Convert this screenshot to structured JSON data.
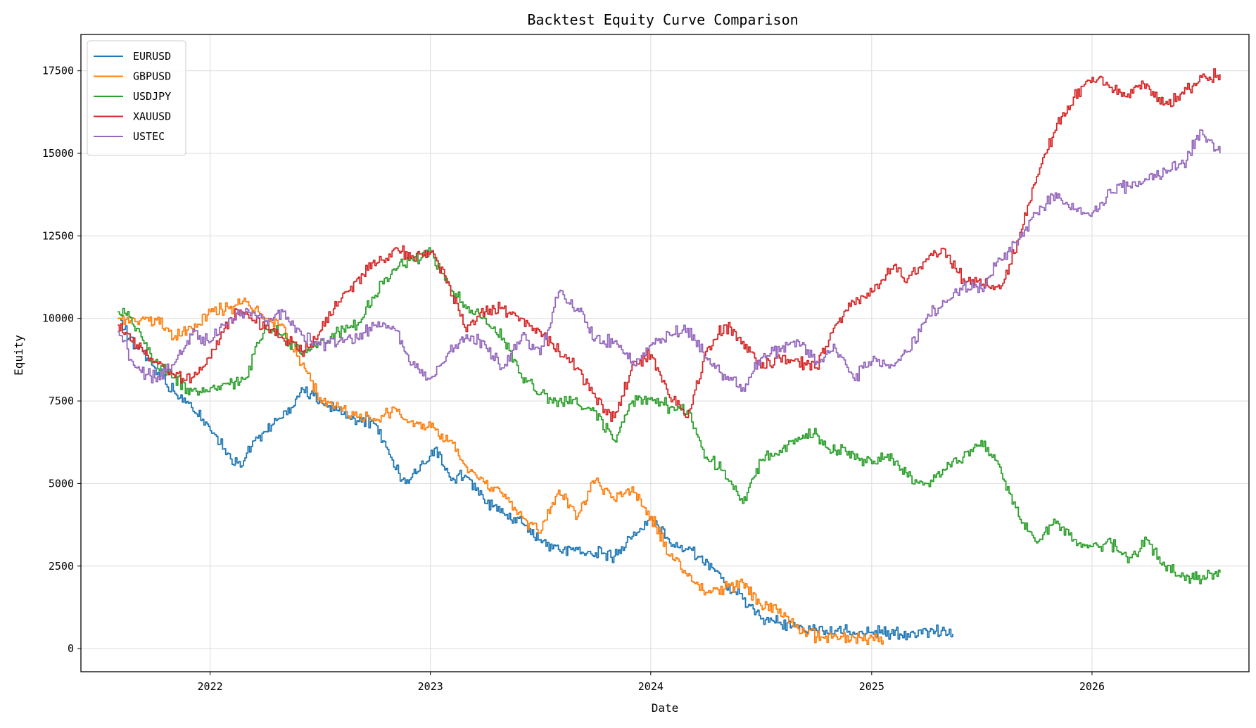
{
  "chart_data": {
    "type": "line",
    "title": "Backtest Equity Curve Comparison",
    "xlabel": "Date",
    "ylabel": "Equity",
    "x_ticks": [
      "2022",
      "2023",
      "2024",
      "2025",
      "2026"
    ],
    "y_ticks": [
      0,
      2500,
      5000,
      7500,
      10000,
      12500,
      15000,
      17500
    ],
    "xlim": [
      "2021-06-01",
      "2026-09-18"
    ],
    "ylim": [
      -700,
      18600
    ],
    "grid": true,
    "legend_position": "top-left",
    "series": [
      {
        "name": "EURUSD",
        "color": "#1f77b4",
        "points": [
          [
            "2021-08-01",
            10000
          ],
          [
            "2021-09-01",
            9100
          ],
          [
            "2021-10-01",
            8500
          ],
          [
            "2021-11-01",
            7800
          ],
          [
            "2021-12-01",
            7300
          ],
          [
            "2022-01-01",
            6600
          ],
          [
            "2022-02-01",
            5900
          ],
          [
            "2022-02-20",
            5500
          ],
          [
            "2022-03-15",
            6300
          ],
          [
            "2022-04-15",
            6800
          ],
          [
            "2022-05-15",
            7300
          ],
          [
            "2022-06-01",
            7900
          ],
          [
            "2022-07-01",
            7500
          ],
          [
            "2022-08-01",
            7200
          ],
          [
            "2022-09-01",
            6900
          ],
          [
            "2022-10-01",
            6800
          ],
          [
            "2022-11-01",
            5500
          ],
          [
            "2022-11-20",
            5000
          ],
          [
            "2022-12-20",
            5600
          ],
          [
            "2023-01-10",
            6100
          ],
          [
            "2023-02-01",
            5200
          ],
          [
            "2023-03-01",
            5200
          ],
          [
            "2023-04-01",
            4400
          ],
          [
            "2023-05-01",
            4100
          ],
          [
            "2023-06-01",
            3800
          ],
          [
            "2023-07-01",
            3300
          ],
          [
            "2023-08-01",
            3000
          ],
          [
            "2023-09-01",
            3000
          ],
          [
            "2023-10-01",
            2900
          ],
          [
            "2023-11-01",
            2800
          ],
          [
            "2023-12-01",
            3400
          ],
          [
            "2024-01-01",
            4000
          ],
          [
            "2024-02-01",
            3200
          ],
          [
            "2024-03-01",
            3000
          ],
          [
            "2024-04-01",
            2700
          ],
          [
            "2024-05-01",
            2000
          ],
          [
            "2024-06-01",
            1500
          ],
          [
            "2024-07-01",
            900
          ],
          [
            "2024-08-01",
            800
          ],
          [
            "2024-09-01",
            600
          ],
          [
            "2024-10-01",
            550
          ],
          [
            "2024-11-01",
            550
          ],
          [
            "2024-12-01",
            500
          ],
          [
            "2025-01-01",
            500
          ],
          [
            "2025-02-01",
            450
          ],
          [
            "2025-03-01",
            450
          ],
          [
            "2025-04-01",
            550
          ],
          [
            "2025-05-01",
            550
          ],
          [
            "2025-05-15",
            450
          ]
        ]
      },
      {
        "name": "GBPUSD",
        "color": "#ff7f0e",
        "points": [
          [
            "2021-08-01",
            10000
          ],
          [
            "2021-09-01",
            9900
          ],
          [
            "2021-10-01",
            10000
          ],
          [
            "2021-11-01",
            9400
          ],
          [
            "2021-12-01",
            9700
          ],
          [
            "2022-01-01",
            10200
          ],
          [
            "2022-02-01",
            10300
          ],
          [
            "2022-03-01",
            10500
          ],
          [
            "2022-04-01",
            10000
          ],
          [
            "2022-05-01",
            9800
          ],
          [
            "2022-06-01",
            8600
          ],
          [
            "2022-07-01",
            7600
          ],
          [
            "2022-08-01",
            7300
          ],
          [
            "2022-09-01",
            7000
          ],
          [
            "2022-10-01",
            6900
          ],
          [
            "2022-11-01",
            7300
          ],
          [
            "2022-12-01",
            6900
          ],
          [
            "2023-01-01",
            6700
          ],
          [
            "2023-02-01",
            6300
          ],
          [
            "2023-03-01",
            5500
          ],
          [
            "2023-04-01",
            5000
          ],
          [
            "2023-05-01",
            4600
          ],
          [
            "2023-06-01",
            4000
          ],
          [
            "2023-07-01",
            3500
          ],
          [
            "2023-08-01",
            4800
          ],
          [
            "2023-09-01",
            4000
          ],
          [
            "2023-10-01",
            5100
          ],
          [
            "2023-11-01",
            4500
          ],
          [
            "2023-12-01",
            4900
          ],
          [
            "2024-01-01",
            4000
          ],
          [
            "2024-02-01",
            2800
          ],
          [
            "2024-03-01",
            2200
          ],
          [
            "2024-04-01",
            1700
          ],
          [
            "2024-05-01",
            1800
          ],
          [
            "2024-06-01",
            2000
          ],
          [
            "2024-07-01",
            1300
          ],
          [
            "2024-08-01",
            1200
          ],
          [
            "2024-09-01",
            600
          ],
          [
            "2024-10-01",
            350
          ],
          [
            "2024-12-01",
            350
          ],
          [
            "2025-01-01",
            350
          ],
          [
            "2025-01-20",
            250
          ]
        ]
      },
      {
        "name": "USDJPY",
        "color": "#2ca02c",
        "points": [
          [
            "2021-08-01",
            10200
          ],
          [
            "2021-08-15",
            10100
          ],
          [
            "2021-09-01",
            9700
          ],
          [
            "2021-10-01",
            8700
          ],
          [
            "2021-11-01",
            8200
          ],
          [
            "2021-12-01",
            7800
          ],
          [
            "2022-01-01",
            7900
          ],
          [
            "2022-02-01",
            8000
          ],
          [
            "2022-03-01",
            8200
          ],
          [
            "2022-04-01",
            9800
          ],
          [
            "2022-05-01",
            9500
          ],
          [
            "2022-06-01",
            8900
          ],
          [
            "2022-07-01",
            9200
          ],
          [
            "2022-08-01",
            9600
          ],
          [
            "2022-09-01",
            9800
          ],
          [
            "2022-10-01",
            10700
          ],
          [
            "2022-11-01",
            11500
          ],
          [
            "2022-12-01",
            11800
          ],
          [
            "2023-01-01",
            12000
          ],
          [
            "2023-02-01",
            11000
          ],
          [
            "2023-03-01",
            10300
          ],
          [
            "2023-04-01",
            10000
          ],
          [
            "2023-05-01",
            9400
          ],
          [
            "2023-06-01",
            8200
          ],
          [
            "2023-07-01",
            7700
          ],
          [
            "2023-08-01",
            7500
          ],
          [
            "2023-09-01",
            7400
          ],
          [
            "2023-10-01",
            7200
          ],
          [
            "2023-11-01",
            6300
          ],
          [
            "2023-12-01",
            7500
          ],
          [
            "2024-01-01",
            7600
          ],
          [
            "2024-02-01",
            7300
          ],
          [
            "2024-03-01",
            7200
          ],
          [
            "2024-04-01",
            5800
          ],
          [
            "2024-05-01",
            5400
          ],
          [
            "2024-06-01",
            4400
          ],
          [
            "2024-07-01",
            5700
          ],
          [
            "2024-08-01",
            6000
          ],
          [
            "2024-09-01",
            6400
          ],
          [
            "2024-10-01",
            6500
          ],
          [
            "2024-11-01",
            6000
          ],
          [
            "2024-12-01",
            5900
          ],
          [
            "2025-01-01",
            5600
          ],
          [
            "2025-02-01",
            5900
          ],
          [
            "2025-03-01",
            5200
          ],
          [
            "2025-04-01",
            5000
          ],
          [
            "2025-05-01",
            5400
          ],
          [
            "2025-06-01",
            5800
          ],
          [
            "2025-07-01",
            6300
          ],
          [
            "2025-08-01",
            5500
          ],
          [
            "2025-09-01",
            4000
          ],
          [
            "2025-10-01",
            3200
          ],
          [
            "2025-11-01",
            3800
          ],
          [
            "2025-12-01",
            3300
          ],
          [
            "2026-01-01",
            3100
          ],
          [
            "2026-02-01",
            3200
          ],
          [
            "2026-03-01",
            2600
          ],
          [
            "2026-04-01",
            3300
          ],
          [
            "2026-05-01",
            2500
          ],
          [
            "2026-06-01",
            2200
          ],
          [
            "2026-07-01",
            2100
          ],
          [
            "2026-08-01",
            2300
          ]
        ]
      },
      {
        "name": "XAUUSD",
        "color": "#d62728",
        "points": [
          [
            "2021-08-01",
            9800
          ],
          [
            "2021-09-01",
            9200
          ],
          [
            "2021-10-01",
            8700
          ],
          [
            "2021-11-01",
            8300
          ],
          [
            "2021-12-01",
            8200
          ],
          [
            "2022-01-01",
            8800
          ],
          [
            "2022-02-01",
            10000
          ],
          [
            "2022-03-01",
            10200
          ],
          [
            "2022-04-01",
            9700
          ],
          [
            "2022-05-01",
            9400
          ],
          [
            "2022-06-01",
            9000
          ],
          [
            "2022-07-01",
            9600
          ],
          [
            "2022-08-01",
            10500
          ],
          [
            "2022-09-01",
            11200
          ],
          [
            "2022-10-01",
            11600
          ],
          [
            "2022-11-01",
            12100
          ],
          [
            "2022-12-01",
            11900
          ],
          [
            "2023-01-01",
            12000
          ],
          [
            "2023-02-01",
            11000
          ],
          [
            "2023-03-01",
            9600
          ],
          [
            "2023-04-01",
            10200
          ],
          [
            "2023-05-01",
            10300
          ],
          [
            "2023-06-01",
            10000
          ],
          [
            "2023-07-01",
            9600
          ],
          [
            "2023-08-01",
            9000
          ],
          [
            "2023-09-01",
            8500
          ],
          [
            "2023-10-01",
            7600
          ],
          [
            "2023-11-01",
            7000
          ],
          [
            "2023-12-01",
            8600
          ],
          [
            "2024-01-01",
            8900
          ],
          [
            "2024-02-01",
            7600
          ],
          [
            "2024-03-01",
            7000
          ],
          [
            "2024-04-01",
            9000
          ],
          [
            "2024-05-01",
            9800
          ],
          [
            "2024-06-01",
            9300
          ],
          [
            "2024-07-01",
            8500
          ],
          [
            "2024-08-01",
            8800
          ],
          [
            "2024-09-01",
            8700
          ],
          [
            "2024-10-01",
            8500
          ],
          [
            "2024-11-01",
            9800
          ],
          [
            "2024-12-01",
            10500
          ],
          [
            "2025-01-01",
            10800
          ],
          [
            "2025-02-01",
            11500
          ],
          [
            "2025-03-01",
            11200
          ],
          [
            "2025-04-01",
            11800
          ],
          [
            "2025-05-01",
            12100
          ],
          [
            "2025-06-01",
            11200
          ],
          [
            "2025-07-01",
            11000
          ],
          [
            "2025-08-01",
            10900
          ],
          [
            "2025-09-01",
            12400
          ],
          [
            "2025-10-01",
            14300
          ],
          [
            "2025-11-01",
            15700
          ],
          [
            "2025-12-01",
            16700
          ],
          [
            "2026-01-01",
            17300
          ],
          [
            "2026-02-01",
            17000
          ],
          [
            "2026-03-01",
            16800
          ],
          [
            "2026-04-01",
            17100
          ],
          [
            "2026-05-01",
            16500
          ],
          [
            "2026-06-01",
            16800
          ],
          [
            "2026-07-01",
            17300
          ],
          [
            "2026-08-01",
            17400
          ]
        ]
      },
      {
        "name": "USTEC",
        "color": "#9467bd",
        "points": [
          [
            "2021-08-01",
            9600
          ],
          [
            "2021-09-01",
            8500
          ],
          [
            "2021-10-01",
            8200
          ],
          [
            "2021-11-01",
            8600
          ],
          [
            "2021-12-01",
            9500
          ],
          [
            "2022-01-01",
            9300
          ],
          [
            "2022-02-01",
            10000
          ],
          [
            "2022-03-01",
            10300
          ],
          [
            "2022-04-01",
            9900
          ],
          [
            "2022-05-01",
            10200
          ],
          [
            "2022-06-01",
            9500
          ],
          [
            "2022-07-01",
            9200
          ],
          [
            "2022-08-01",
            9300
          ],
          [
            "2022-09-01",
            9400
          ],
          [
            "2022-10-01",
            9800
          ],
          [
            "2022-11-01",
            9700
          ],
          [
            "2022-12-01",
            8600
          ],
          [
            "2023-01-01",
            8200
          ],
          [
            "2023-02-01",
            9000
          ],
          [
            "2023-03-01",
            9500
          ],
          [
            "2023-04-01",
            9200
          ],
          [
            "2023-05-01",
            8500
          ],
          [
            "2023-06-01",
            9500
          ],
          [
            "2023-07-01",
            8900
          ],
          [
            "2023-08-01",
            10800
          ],
          [
            "2023-09-01",
            10300
          ],
          [
            "2023-10-01",
            9400
          ],
          [
            "2023-11-01",
            9300
          ],
          [
            "2023-12-01",
            8700
          ],
          [
            "2024-01-01",
            9200
          ],
          [
            "2024-02-01",
            9500
          ],
          [
            "2024-03-01",
            9700
          ],
          [
            "2024-04-01",
            8800
          ],
          [
            "2024-05-01",
            8300
          ],
          [
            "2024-06-01",
            7900
          ],
          [
            "2024-07-01",
            8800
          ],
          [
            "2024-08-01",
            9000
          ],
          [
            "2024-09-01",
            9300
          ],
          [
            "2024-10-01",
            8700
          ],
          [
            "2024-11-01",
            9100
          ],
          [
            "2024-12-01",
            8200
          ],
          [
            "2025-01-01",
            8700
          ],
          [
            "2025-02-01",
            8600
          ],
          [
            "2025-03-01",
            9000
          ],
          [
            "2025-04-01",
            10000
          ],
          [
            "2025-05-01",
            10500
          ],
          [
            "2025-06-01",
            11000
          ],
          [
            "2025-07-01",
            10900
          ],
          [
            "2025-08-01",
            11800
          ],
          [
            "2025-09-01",
            12400
          ],
          [
            "2025-10-01",
            13200
          ],
          [
            "2025-11-01",
            13800
          ],
          [
            "2025-12-01",
            13300
          ],
          [
            "2026-01-01",
            13200
          ],
          [
            "2026-02-01",
            13800
          ],
          [
            "2026-03-01",
            14000
          ],
          [
            "2026-04-01",
            14200
          ],
          [
            "2026-05-01",
            14500
          ],
          [
            "2026-06-01",
            14700
          ],
          [
            "2026-07-01",
            15700
          ],
          [
            "2026-08-01",
            15000
          ]
        ]
      }
    ]
  }
}
